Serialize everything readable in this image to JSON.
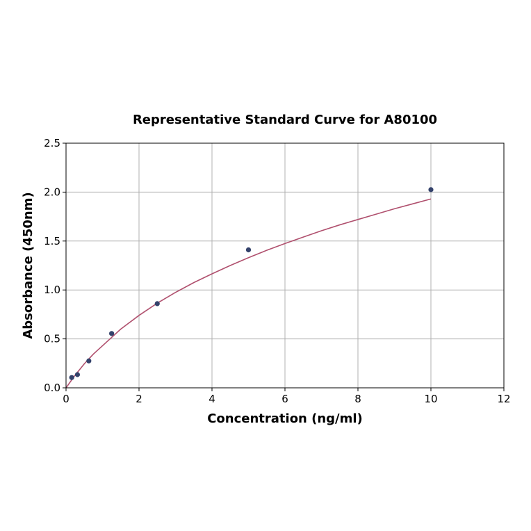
{
  "chart_data": {
    "type": "scatter",
    "title": "Representative Standard Curve for A80100",
    "xlabel": "Concentration (ng/ml)",
    "ylabel": "Absorbance (450nm)",
    "xlim": [
      0,
      12
    ],
    "ylim": [
      0,
      2.5
    ],
    "xticks": [
      0,
      2,
      4,
      6,
      8,
      10,
      12
    ],
    "xtick_labels": [
      "0",
      "2",
      "4",
      "6",
      "8",
      "10",
      "12"
    ],
    "yticks": [
      0,
      0.5,
      1.0,
      1.5,
      2.0,
      2.5
    ],
    "ytick_labels": [
      "0.0",
      "0.5",
      "1.0",
      "1.5",
      "2.0",
      "2.5"
    ],
    "grid": true,
    "points": {
      "x": [
        0.156,
        0.313,
        0.625,
        1.25,
        2.5,
        5,
        10
      ],
      "y": [
        0.105,
        0.135,
        0.275,
        0.555,
        0.86,
        1.41,
        2.025
      ]
    },
    "fit_curve": {
      "x": [
        0,
        0.25,
        0.5,
        0.75,
        1,
        1.5,
        2,
        2.5,
        3,
        3.5,
        4,
        4.5,
        5,
        5.5,
        6,
        6.5,
        7,
        7.5,
        8,
        8.5,
        9,
        9.5,
        10
      ],
      "y": [
        0,
        0.13,
        0.245,
        0.345,
        0.43,
        0.6,
        0.74,
        0.865,
        0.975,
        1.075,
        1.165,
        1.25,
        1.33,
        1.405,
        1.475,
        1.54,
        1.605,
        1.665,
        1.72,
        1.775,
        1.83,
        1.88,
        1.93
      ]
    },
    "colors": {
      "points": "#34426b",
      "curve": "#b0506e"
    }
  }
}
